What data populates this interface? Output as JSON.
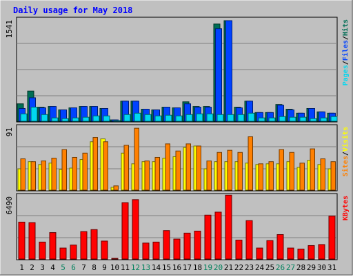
{
  "title": "Daily usage for May 2018",
  "colors": {
    "background": "#c0c0c0",
    "title": "#0000ff",
    "hits": "#006e55",
    "files": "#0042ff",
    "pages": "#00d8f0",
    "visits": "#ffff00",
    "sites": "#ff8000",
    "kbytes": "#ff0000",
    "weekend_label": "#00805c",
    "weekday_label": "#000000"
  },
  "chart_data": [
    {
      "type": "bar",
      "name": "traffic",
      "categories": [
        "1",
        "2",
        "3",
        "4",
        "5",
        "6",
        "7",
        "8",
        "9",
        "10",
        "11",
        "12",
        "13",
        "14",
        "15",
        "16",
        "17",
        "18",
        "19",
        "20",
        "21",
        "22",
        "23",
        "24",
        "25",
        "26",
        "27",
        "28",
        "29",
        "30",
        "31"
      ],
      "weekend_days": [
        "5",
        "6",
        "12",
        "13",
        "19",
        "20",
        "26",
        "27"
      ],
      "y_max_label": "1541",
      "ylim": [
        0,
        1541
      ],
      "legend": [
        {
          "label": "Pages",
          "color": "#00d8f0"
        },
        {
          "label": "/",
          "color": "#000000"
        },
        {
          "label": "Files",
          "color": "#0042ff"
        },
        {
          "label": "/",
          "color": "#000000"
        },
        {
          "label": "Hits",
          "color": "#006e55"
        }
      ],
      "series": [
        {
          "name": "Hits",
          "color": "#006e55",
          "values": [
            260,
            450,
            210,
            220,
            170,
            200,
            220,
            220,
            190,
            20,
            300,
            300,
            180,
            170,
            210,
            200,
            290,
            220,
            220,
            1450,
            1500,
            210,
            300,
            130,
            130,
            250,
            180,
            120,
            190,
            140,
            120
          ]
        },
        {
          "name": "Files",
          "color": "#0042ff",
          "values": [
            190,
            350,
            200,
            220,
            170,
            200,
            220,
            220,
            190,
            20,
            300,
            300,
            180,
            170,
            210,
            200,
            260,
            210,
            210,
            1380,
            1500,
            200,
            300,
            130,
            130,
            240,
            170,
            120,
            190,
            140,
            120
          ]
        },
        {
          "name": "Pages",
          "color": "#00d8f0",
          "values": [
            110,
            210,
            100,
            50,
            40,
            50,
            60,
            80,
            80,
            0,
            100,
            120,
            100,
            80,
            90,
            80,
            100,
            110,
            110,
            100,
            100,
            100,
            120,
            50,
            50,
            70,
            60,
            60,
            40,
            50,
            70
          ]
        }
      ]
    },
    {
      "type": "bar",
      "name": "visitors",
      "categories": [
        "1",
        "2",
        "3",
        "4",
        "5",
        "6",
        "7",
        "8",
        "9",
        "10",
        "11",
        "12",
        "13",
        "14",
        "15",
        "16",
        "17",
        "18",
        "19",
        "20",
        "21",
        "22",
        "23",
        "24",
        "25",
        "26",
        "27",
        "28",
        "29",
        "30",
        "31"
      ],
      "y_max_label": "91",
      "ylim": [
        0,
        91
      ],
      "legend": [
        {
          "label": "Sites",
          "color": "#ff8000"
        },
        {
          "label": "/",
          "color": "#000000"
        },
        {
          "label": "Visits",
          "color": "#ffff00"
        }
      ],
      "series": [
        {
          "name": "Visits",
          "color": "#ffff00",
          "values": [
            30,
            40,
            36,
            38,
            29,
            31,
            43,
            68,
            72,
            4,
            52,
            37,
            40,
            40,
            45,
            47,
            60,
            62,
            30,
            40,
            40,
            40,
            38,
            36,
            37,
            37,
            40,
            32,
            42,
            36,
            30
          ]
        },
        {
          "name": "Sites",
          "color": "#ff8000",
          "values": [
            44,
            40,
            41,
            45,
            57,
            46,
            52,
            74,
            68,
            6,
            63,
            87,
            41,
            46,
            65,
            55,
            65,
            62,
            41,
            53,
            56,
            53,
            75,
            37,
            40,
            57,
            53,
            38,
            58,
            44,
            40
          ]
        }
      ]
    },
    {
      "type": "bar",
      "name": "kbytes",
      "categories": [
        "1",
        "2",
        "3",
        "4",
        "5",
        "6",
        "7",
        "8",
        "9",
        "10",
        "11",
        "12",
        "13",
        "14",
        "15",
        "16",
        "17",
        "18",
        "19",
        "20",
        "21",
        "22",
        "23",
        "24",
        "25",
        "26",
        "27",
        "28",
        "29",
        "30",
        "31"
      ],
      "y_max_label": "6490",
      "ylim": [
        0,
        6490
      ],
      "legend": [
        {
          "label": "KBytes",
          "color": "#ff0000"
        }
      ],
      "series": [
        {
          "name": "KBytes",
          "color": "#ff0000",
          "values": [
            3700,
            3650,
            1700,
            2650,
            1100,
            1400,
            2750,
            2950,
            1800,
            40,
            5650,
            5950,
            1600,
            1700,
            2850,
            2000,
            2600,
            2800,
            4400,
            4700,
            6400,
            1900,
            3850,
            1100,
            1850,
            2450,
            1100,
            1000,
            1350,
            1450,
            4300
          ]
        }
      ]
    }
  ]
}
